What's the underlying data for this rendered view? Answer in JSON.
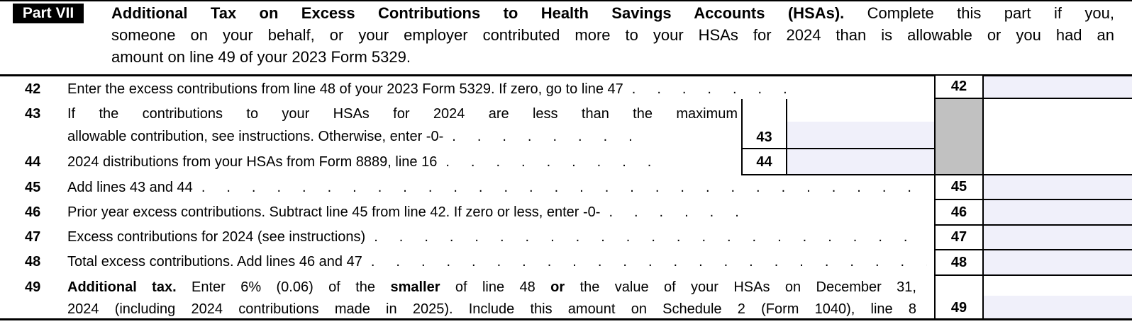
{
  "header": {
    "part_label": "Part VII",
    "title": "Additional Tax on Excess Contributions to Health Savings Accounts (HSAs).",
    "desc_line1": "Complete this part if you,",
    "desc_line2": "someone on your behalf, or your employer contributed more to your HSAs for 2024 than is allowable or you had an",
    "desc_line3": "amount on line 49 of your 2023 Form 5329."
  },
  "colors": {
    "entry_field": "#f0f0fa",
    "shaded_cell": "#c1c1c1",
    "rule": "#000000"
  },
  "lines": {
    "l42": {
      "num": "42",
      "text": "Enter the excess contributions from line 48 of your 2023 Form 5329. If zero, go to line 47",
      "leader": ".......",
      "box": "42",
      "value": ""
    },
    "l43": {
      "num": "43",
      "text1": "If the contributions to your HSAs for 2024 are less than the maximum",
      "text2": "allowable contribution, see instructions. Otherwise, enter -0-",
      "leader": "........",
      "box": "43",
      "value": ""
    },
    "l44": {
      "num": "44",
      "text": "2024 distributions from your HSAs from Form 8889, line 16",
      "leader": ".........",
      "box": "44",
      "value": ""
    },
    "l45": {
      "num": "45",
      "text": "Add lines 43 and 44",
      "leader": "..............................",
      "box": "45",
      "value": ""
    },
    "l46": {
      "num": "46",
      "text": "Prior year excess contributions. Subtract line 45 from line 42. If zero or less, enter -0-",
      "leader": "......",
      "box": "46",
      "value": ""
    },
    "l47": {
      "num": "47",
      "text": "Excess contributions for 2024 (see instructions)",
      "leader": "......................",
      "box": "47",
      "value": ""
    },
    "l48": {
      "num": "48",
      "text": "Total excess contributions. Add lines 46 and 47",
      "leader": ".......................",
      "box": "48",
      "value": ""
    },
    "l49": {
      "num": "49",
      "seg1": "Additional tax.",
      "seg2": " Enter 6% (0.06) of the ",
      "seg3": "smaller",
      "seg4": " of line 48 ",
      "seg5": "or",
      "seg6": " the value of your HSAs on December 31,",
      "text2": "2024 (including 2024 contributions made in 2025). Include this amount on Schedule 2 (Form 1040), line 8",
      "box": "49",
      "value": ""
    }
  }
}
